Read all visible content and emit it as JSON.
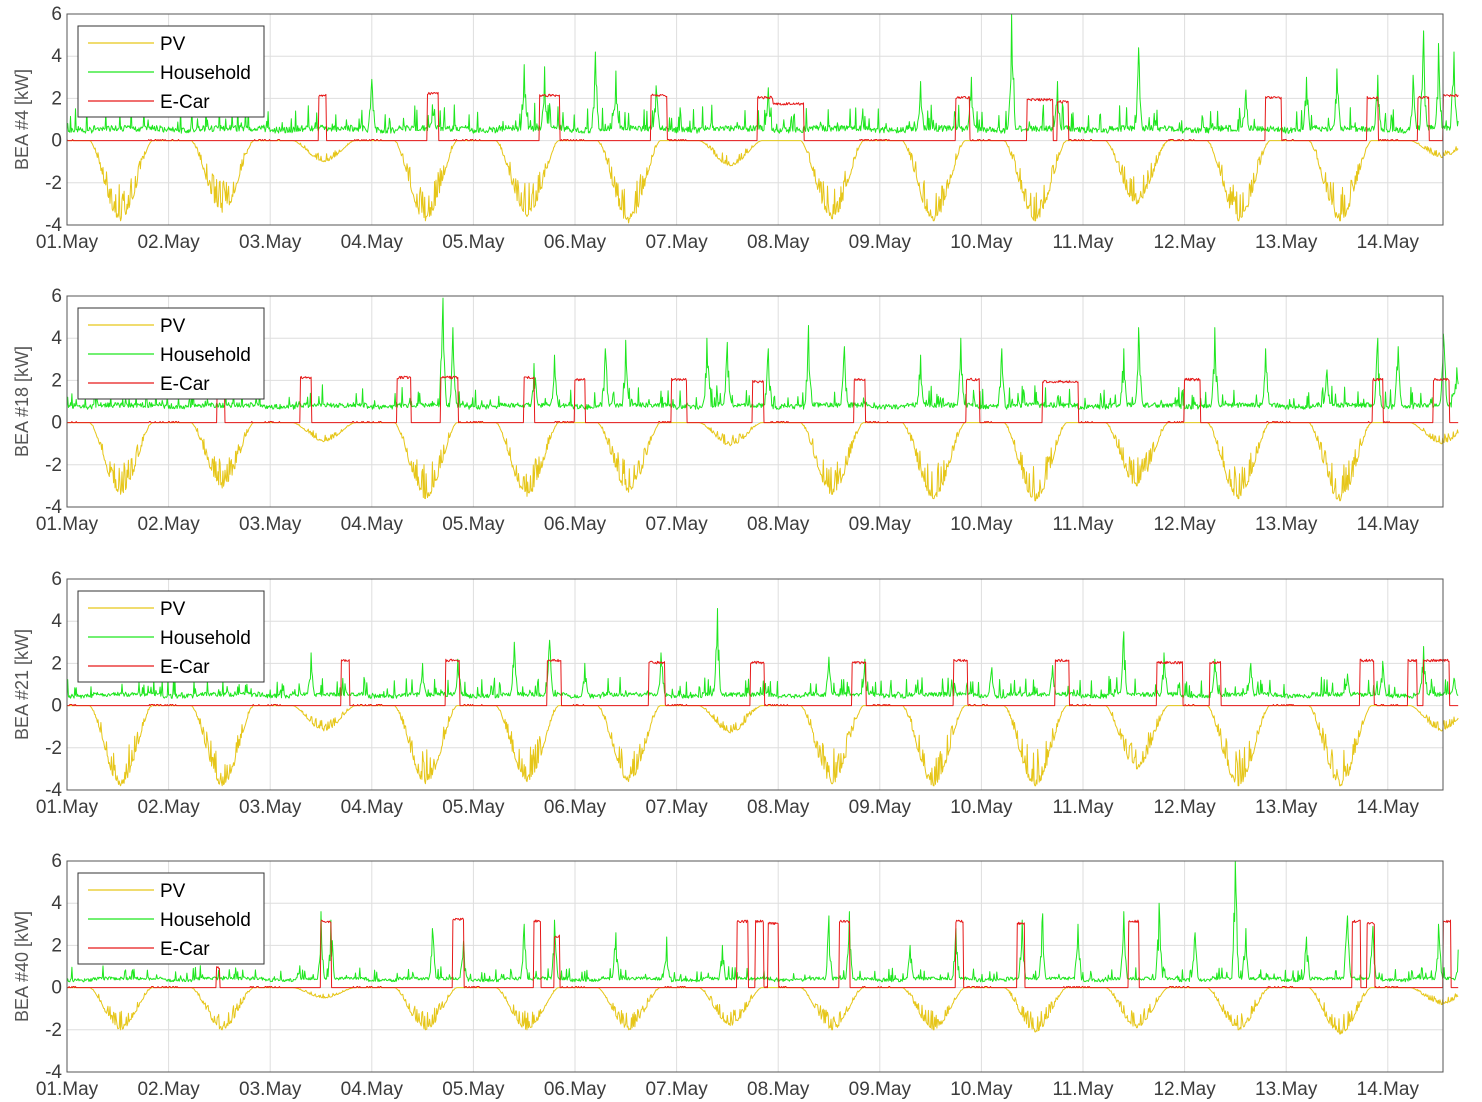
{
  "chart_data": [
    {
      "type": "line",
      "panel_id": "bea4",
      "ylabel": "BEA #4 [kW]",
      "ylim": [
        -4,
        6
      ],
      "yticks": [
        -4,
        -2,
        0,
        2,
        4,
        6
      ],
      "x_tick_labels": [
        "01.May",
        "02.May",
        "03.May",
        "04.May",
        "05.May",
        "06.May",
        "07.May",
        "08.May",
        "09.May",
        "10.May",
        "11.May",
        "12.May",
        "13.May",
        "14.May"
      ],
      "xlim_days": [
        0,
        13.7
      ],
      "grid": true,
      "legend": "top-left",
      "series": [
        {
          "name": "PV",
          "color": "#e6c619",
          "kind": "pv",
          "daily_peak": [
            -3.8,
            -3.4,
            -1.0,
            -3.8,
            -3.6,
            -3.9,
            -1.2,
            -3.7,
            -3.8,
            -3.8,
            -3.0,
            -3.8,
            -3.8,
            -0.8
          ]
        },
        {
          "name": "Household",
          "color": "#1ee61e",
          "kind": "household",
          "base": 0.5,
          "noise": 0.5,
          "peaks": [
            [
              3.0,
              2.9
            ],
            [
              3.6,
              1.7
            ],
            [
              4.5,
              3.6
            ],
            [
              4.7,
              3.5
            ],
            [
              5.2,
              4.2
            ],
            [
              5.4,
              3.3
            ],
            [
              5.8,
              2.6
            ],
            [
              6.9,
              2.5
            ],
            [
              8.4,
              2.8
            ],
            [
              8.9,
              3.0
            ],
            [
              9.3,
              6.0
            ],
            [
              9.75,
              2.8
            ],
            [
              10.55,
              4.4
            ],
            [
              11.6,
              2.4
            ],
            [
              12.2,
              3.0
            ],
            [
              12.5,
              3.4
            ],
            [
              12.9,
              3.1
            ],
            [
              13.25,
              3.1
            ],
            [
              13.35,
              5.2
            ],
            [
              13.5,
              4.6
            ],
            [
              13.65,
              4.2
            ]
          ]
        },
        {
          "name": "E-Car",
          "color": "#e61919",
          "kind": "ecar",
          "sessions": [
            [
              2.48,
              2.55,
              2.2
            ],
            [
              3.55,
              3.65,
              2.3
            ],
            [
              4.65,
              4.85,
              2.2
            ],
            [
              5.75,
              5.9,
              2.2
            ],
            [
              6.8,
              6.95,
              2.1
            ],
            [
              6.95,
              7.25,
              1.8
            ],
            [
              8.75,
              8.88,
              2.1
            ],
            [
              9.45,
              9.7,
              2.0
            ],
            [
              9.75,
              9.85,
              1.9
            ],
            [
              11.8,
              11.95,
              2.1
            ],
            [
              12.8,
              12.9,
              2.1
            ],
            [
              13.3,
              13.4,
              2.1
            ],
            [
              13.55,
              13.85,
              2.2
            ]
          ]
        }
      ]
    },
    {
      "type": "line",
      "panel_id": "bea18",
      "ylabel": "BEA #18 [kW]",
      "ylim": [
        -4,
        6
      ],
      "yticks": [
        -4,
        -2,
        0,
        2,
        4,
        6
      ],
      "x_tick_labels": [
        "01.May",
        "02.May",
        "03.May",
        "04.May",
        "05.May",
        "06.May",
        "07.May",
        "08.May",
        "09.May",
        "10.May",
        "11.May",
        "12.May",
        "13.May",
        "14.May"
      ],
      "xlim_days": [
        0,
        13.7
      ],
      "grid": true,
      "legend": "top-left",
      "series": [
        {
          "name": "PV",
          "color": "#e6c619",
          "kind": "pv",
          "daily_peak": [
            -3.4,
            -3.1,
            -0.9,
            -3.6,
            -3.5,
            -3.3,
            -1.1,
            -3.4,
            -3.6,
            -3.7,
            -3.0,
            -3.6,
            -3.7,
            -1.0
          ]
        },
        {
          "name": "Household",
          "color": "#1ee61e",
          "kind": "household",
          "base": 0.75,
          "noise": 0.4,
          "peaks": [
            [
              3.7,
              5.9
            ],
            [
              3.8,
              4.5
            ],
            [
              4.6,
              2.8
            ],
            [
              4.8,
              3.2
            ],
            [
              5.3,
              3.5
            ],
            [
              5.5,
              3.9
            ],
            [
              6.3,
              4.0
            ],
            [
              6.5,
              3.8
            ],
            [
              6.9,
              3.5
            ],
            [
              7.3,
              4.6
            ],
            [
              7.65,
              3.6
            ],
            [
              8.4,
              3.2
            ],
            [
              8.8,
              4.0
            ],
            [
              9.2,
              3.5
            ],
            [
              10.4,
              3.5
            ],
            [
              10.55,
              4.5
            ],
            [
              11.3,
              4.5
            ],
            [
              11.8,
              3.5
            ],
            [
              12.4,
              2.5
            ],
            [
              12.9,
              4.0
            ],
            [
              13.1,
              3.6
            ],
            [
              13.55,
              4.2
            ],
            [
              13.68,
              2.6
            ]
          ]
        },
        {
          "name": "E-Car",
          "color": "#e61919",
          "kind": "ecar",
          "sessions": [
            [
              1.48,
              1.55,
              2.1
            ],
            [
              2.3,
              2.4,
              2.2
            ],
            [
              3.25,
              3.38,
              2.2
            ],
            [
              3.68,
              3.85,
              2.2
            ],
            [
              4.5,
              4.6,
              2.2
            ],
            [
              5.0,
              5.1,
              2.1
            ],
            [
              5.95,
              6.1,
              2.1
            ],
            [
              6.75,
              6.85,
              2.0
            ],
            [
              7.75,
              7.85,
              2.1
            ],
            [
              8.85,
              8.98,
              2.1
            ],
            [
              9.6,
              9.95,
              2.0
            ],
            [
              11.0,
              11.15,
              2.1
            ],
            [
              12.85,
              12.95,
              2.1
            ],
            [
              13.45,
              13.6,
              2.1
            ]
          ]
        }
      ]
    },
    {
      "type": "line",
      "panel_id": "bea21",
      "ylabel": "BEA #21 [kW]",
      "ylim": [
        -4,
        6
      ],
      "yticks": [
        -4,
        -2,
        0,
        2,
        4,
        6
      ],
      "x_tick_labels": [
        "01.May",
        "02.May",
        "03.May",
        "04.May",
        "05.May",
        "06.May",
        "07.May",
        "08.May",
        "09.May",
        "10.May",
        "11.May",
        "12.May",
        "13.May",
        "14.May"
      ],
      "xlim_days": [
        0,
        13.7
      ],
      "grid": true,
      "legend": "top-left",
      "series": [
        {
          "name": "PV",
          "color": "#e6c619",
          "kind": "pv",
          "daily_peak": [
            -3.8,
            -3.8,
            -1.2,
            -3.7,
            -3.6,
            -3.6,
            -1.3,
            -3.7,
            -3.8,
            -3.8,
            -3.0,
            -3.8,
            -3.8,
            -1.2
          ]
        },
        {
          "name": "Household",
          "color": "#1ee61e",
          "kind": "household",
          "base": 0.45,
          "noise": 0.35,
          "peaks": [
            [
              2.4,
              2.5
            ],
            [
              3.5,
              2.0
            ],
            [
              3.85,
              2.2
            ],
            [
              4.4,
              3.0
            ],
            [
              4.75,
              3.1
            ],
            [
              5.1,
              2.0
            ],
            [
              5.85,
              2.5
            ],
            [
              6.4,
              4.6
            ],
            [
              7.5,
              2.3
            ],
            [
              7.85,
              2.2
            ],
            [
              9.1,
              1.8
            ],
            [
              9.7,
              1.9
            ],
            [
              10.4,
              3.5
            ],
            [
              10.8,
              2.5
            ],
            [
              11.3,
              2.2
            ],
            [
              11.65,
              2.0
            ],
            [
              12.6,
              1.5
            ],
            [
              12.95,
              2.1
            ],
            [
              13.35,
              2.8
            ],
            [
              13.65,
              1.3
            ]
          ]
        },
        {
          "name": "E-Car",
          "color": "#e61919",
          "kind": "ecar",
          "sessions": [
            [
              2.7,
              2.78,
              2.2
            ],
            [
              3.73,
              3.86,
              2.2
            ],
            [
              4.73,
              4.86,
              2.2
            ],
            [
              5.73,
              5.88,
              2.1
            ],
            [
              6.73,
              6.86,
              2.1
            ],
            [
              7.73,
              7.86,
              2.1
            ],
            [
              8.73,
              8.86,
              2.2
            ],
            [
              9.73,
              9.86,
              2.2
            ],
            [
              10.73,
              10.98,
              2.1
            ],
            [
              11.25,
              11.35,
              2.1
            ],
            [
              12.73,
              12.86,
              2.2
            ],
            [
              13.2,
              13.28,
              2.2
            ],
            [
              13.35,
              13.6,
              2.2
            ]
          ]
        }
      ]
    },
    {
      "type": "line",
      "panel_id": "bea40",
      "ylabel": "BEA #40 [kW]",
      "ylim": [
        -4,
        6
      ],
      "yticks": [
        -4,
        -2,
        0,
        2,
        4,
        6
      ],
      "x_tick_labels": [
        "01.May",
        "02.May",
        "03.May",
        "04.May",
        "05.May",
        "06.May",
        "07.May",
        "08.May",
        "09.May",
        "10.May",
        "11.May",
        "12.May",
        "13.May",
        "14.May"
      ],
      "xlim_days": [
        0,
        13.7
      ],
      "grid": true,
      "legend": "top-left",
      "series": [
        {
          "name": "PV",
          "color": "#e6c619",
          "kind": "pv",
          "daily_peak": [
            -2.0,
            -2.0,
            -0.5,
            -2.0,
            -2.0,
            -2.0,
            -1.8,
            -2.0,
            -2.0,
            -2.1,
            -1.9,
            -2.0,
            -2.2,
            -0.8
          ]
        },
        {
          "name": "Household",
          "color": "#1ee61e",
          "kind": "household",
          "base": 0.35,
          "noise": 0.25,
          "peaks": [
            [
              2.5,
              3.6
            ],
            [
              2.6,
              3.2
            ],
            [
              3.6,
              2.8
            ],
            [
              3.9,
              2.2
            ],
            [
              4.5,
              3.0
            ],
            [
              4.8,
              3.2
            ],
            [
              5.4,
              2.6
            ],
            [
              5.9,
              2.4
            ],
            [
              6.45,
              2.0
            ],
            [
              7.5,
              3.4
            ],
            [
              7.7,
              3.6
            ],
            [
              8.3,
              2.0
            ],
            [
              8.75,
              2.8
            ],
            [
              9.4,
              3.2
            ],
            [
              9.6,
              3.5
            ],
            [
              9.95,
              3.0
            ],
            [
              10.4,
              3.6
            ],
            [
              10.75,
              4.0
            ],
            [
              11.1,
              2.6
            ],
            [
              11.5,
              6.0
            ],
            [
              11.6,
              2.8
            ],
            [
              12.2,
              2.4
            ],
            [
              12.6,
              3.4
            ],
            [
              12.85,
              2.9
            ],
            [
              13.5,
              3.0
            ],
            [
              13.7,
              1.8
            ]
          ]
        },
        {
          "name": "E-Car",
          "color": "#e61919",
          "kind": "ecar",
          "sessions": [
            [
              1.47,
              1.5,
              1.0
            ],
            [
              2.5,
              2.6,
              3.2
            ],
            [
              3.8,
              3.9,
              3.3
            ],
            [
              4.6,
              4.66,
              3.2
            ],
            [
              4.8,
              4.85,
              2.5
            ],
            [
              6.6,
              6.7,
              3.2
            ],
            [
              6.78,
              6.85,
              3.2
            ],
            [
              6.9,
              7.0,
              3.1
            ],
            [
              7.6,
              7.7,
              3.2
            ],
            [
              8.75,
              8.82,
              3.2
            ],
            [
              9.35,
              9.42,
              3.1
            ],
            [
              10.45,
              10.55,
              3.2
            ],
            [
              12.65,
              12.73,
              3.2
            ],
            [
              12.8,
              12.87,
              3.1
            ],
            [
              13.55,
              13.62,
              3.2
            ]
          ]
        }
      ]
    }
  ]
}
